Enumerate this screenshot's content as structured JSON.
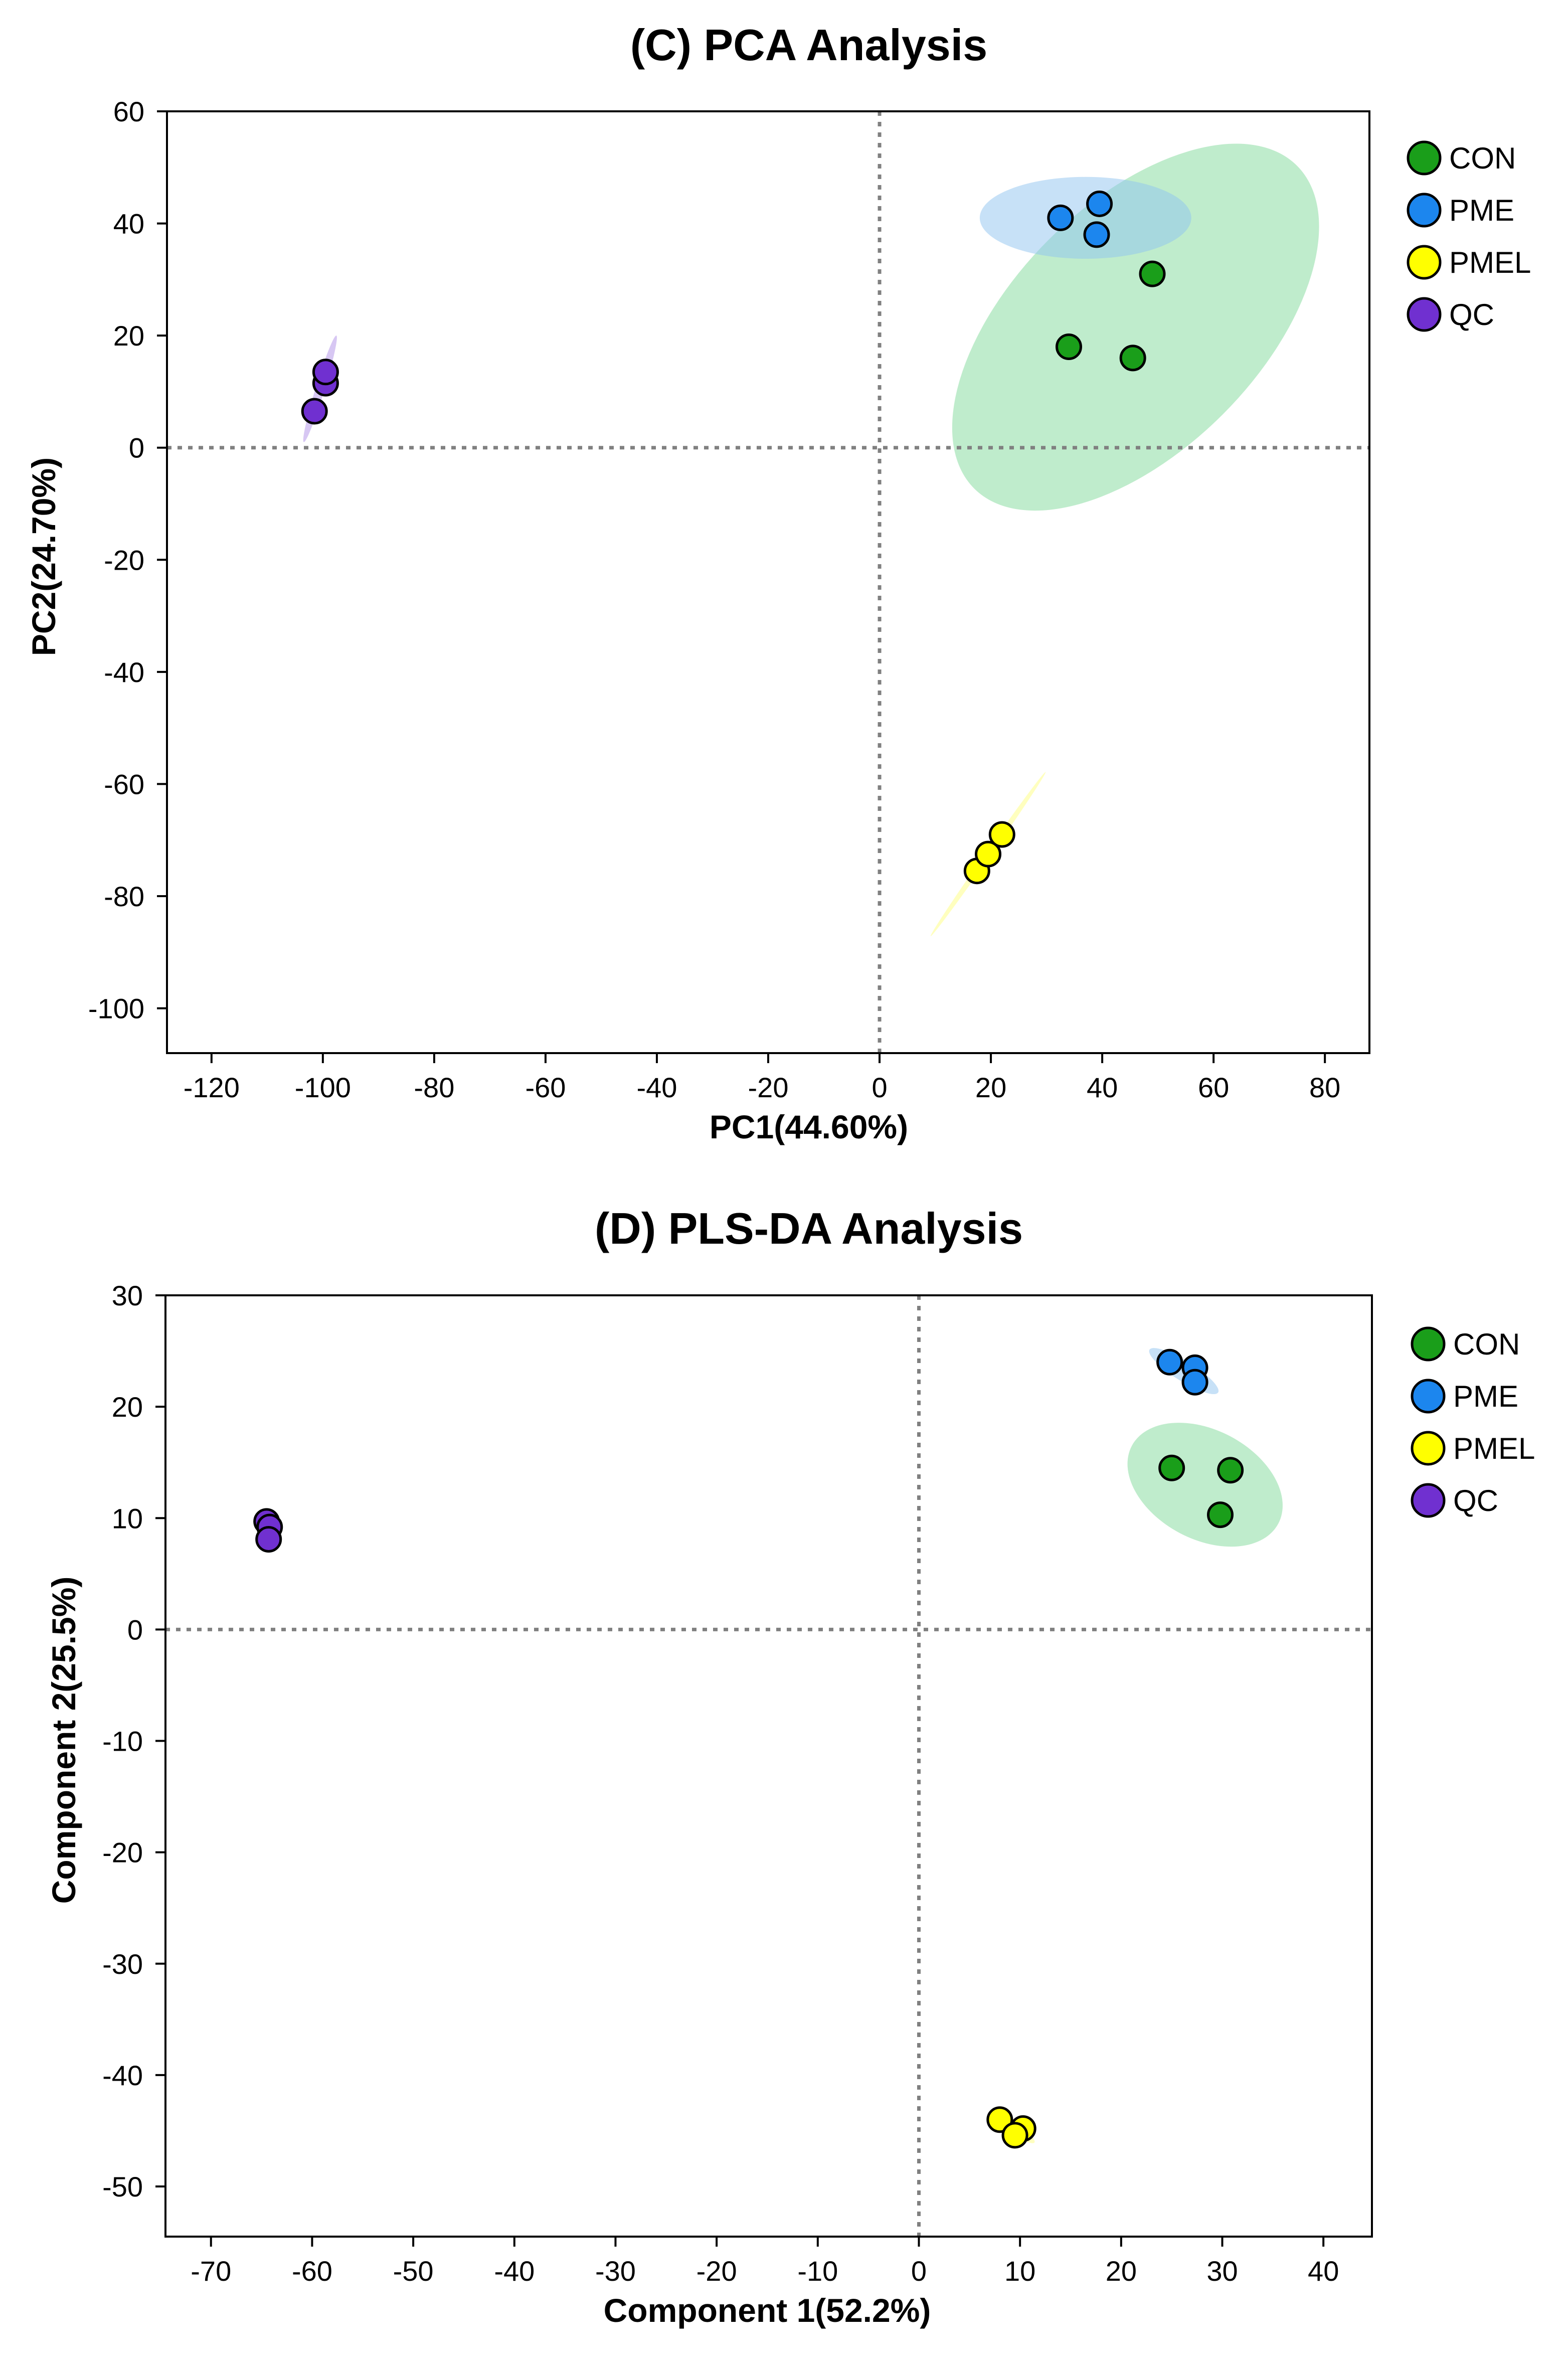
{
  "colors": {
    "CON": "#1a9e1a",
    "PME": "#1c86ee",
    "PMEL": "#ffff00",
    "QC": "#7030d0",
    "CON_ellipse": "#7fd99a",
    "PME_ellipse": "#8fc4f0",
    "PMEL_ellipse": "#ffff80",
    "QC_ellipse": "#b090e8",
    "refline": "#808080"
  },
  "chart_data": [
    {
      "type": "scatter",
      "title": "(C) PCA Analysis",
      "xlabel": "PC1(44.60%)",
      "ylabel": "PC2(24.70%)",
      "xlim": [
        -128,
        88
      ],
      "ylim": [
        -108,
        60
      ],
      "xticks": [
        -120,
        -100,
        -80,
        -60,
        -40,
        -20,
        0,
        20,
        40,
        60,
        80
      ],
      "yticks": [
        60,
        40,
        20,
        0,
        -20,
        -40,
        -60,
        -80,
        -100
      ],
      "reference_lines": {
        "x": 0,
        "y": 0,
        "style": "dotted"
      },
      "legend_position": "right",
      "series": [
        {
          "name": "CON",
          "points": [
            [
              34,
              18
            ],
            [
              45.5,
              16
            ],
            [
              49,
              31
            ]
          ],
          "ellipse": {
            "cx": 46,
            "cy": 21.5,
            "rx": 41,
            "ry": 22,
            "angle": -45
          }
        },
        {
          "name": "PME",
          "points": [
            [
              32.5,
              41
            ],
            [
              39.5,
              43.5
            ],
            [
              39,
              38
            ]
          ],
          "ellipse": {
            "cx": 37,
            "cy": 41,
            "rx": 19,
            "ry": 7.3,
            "angle": 0
          }
        },
        {
          "name": "PMEL",
          "points": [
            [
              17.5,
              -75.5
            ],
            [
              19.5,
              -72.5
            ],
            [
              22,
              -69
            ]
          ],
          "ellipse": {
            "cx": 19.5,
            "cy": -72.5,
            "rx": 18,
            "ry": 0.5,
            "angle": -55
          }
        },
        {
          "name": "QC",
          "points": [
            [
              -101.5,
              6.5
            ],
            [
              -99.5,
              11.5
            ],
            [
              -99.5,
              13.5
            ]
          ],
          "ellipse": {
            "cx": -100.5,
            "cy": 10.5,
            "rx": 10,
            "ry": 0.8,
            "angle": -73
          }
        }
      ]
    },
    {
      "type": "scatter",
      "title": "(D) PLS-DA Analysis",
      "xlabel": "Component 1(52.2%)",
      "ylabel": "Component 2(25.5%)",
      "xlim": [
        -74.5,
        44.8
      ],
      "ylim": [
        -54.5,
        30
      ],
      "xticks": [
        -70,
        -60,
        -50,
        -40,
        -30,
        -20,
        -10,
        0,
        10,
        20,
        30,
        40
      ],
      "yticks": [
        30,
        20,
        10,
        0,
        -10,
        -20,
        -30,
        -40,
        -50
      ],
      "reference_lines": {
        "x": 0,
        "y": 0,
        "style": "dotted"
      },
      "legend_position": "right",
      "series": [
        {
          "name": "CON",
          "points": [
            [
              25,
              14.5
            ],
            [
              30.8,
              14.3
            ],
            [
              29.8,
              10.3
            ]
          ],
          "ellipse": {
            "cx": 28.3,
            "cy": 13,
            "rx": 8.2,
            "ry": 4.9,
            "angle": 28
          }
        },
        {
          "name": "PME",
          "points": [
            [
              24.8,
              24
            ],
            [
              27.3,
              23.5
            ],
            [
              27.3,
              22.2
            ]
          ],
          "ellipse": {
            "cx": 26.2,
            "cy": 23.2,
            "rx": 4.0,
            "ry": 0.9,
            "angle": 32
          }
        },
        {
          "name": "PMEL",
          "points": [
            [
              8,
              -44
            ],
            [
              10.3,
              -44.8
            ],
            [
              9.5,
              -45.4
            ]
          ],
          "ellipse": {
            "cx": 9.3,
            "cy": -44.7,
            "rx": 2.6,
            "ry": 0.5,
            "angle": 35
          }
        },
        {
          "name": "QC",
          "points": [
            [
              -64.5,
              9.7
            ],
            [
              -64.2,
              9.2
            ],
            [
              -64.3,
              8.1
            ]
          ],
          "ellipse": {
            "cx": -64.3,
            "cy": 9,
            "rx": 1.8,
            "ry": 0.35,
            "angle": 75
          }
        }
      ]
    }
  ]
}
